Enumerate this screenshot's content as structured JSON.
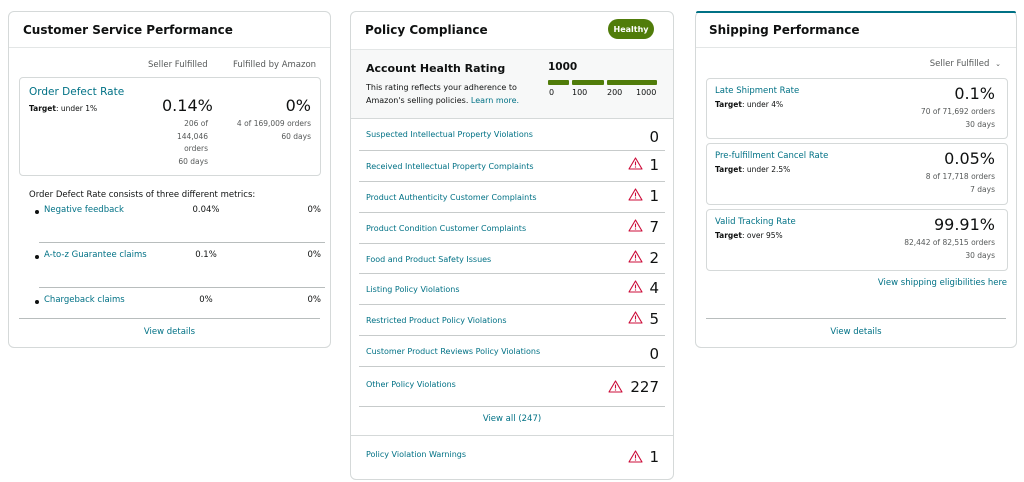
{
  "customer_service": {
    "title": "Customer Service Performance",
    "col_seller": "Seller Fulfilled",
    "col_amazon": "Fulfilled by Amazon",
    "odr": {
      "label": "Order Defect Rate",
      "target_label": "Target",
      "target_value": ": under 1%",
      "seller_pct": "0.14%",
      "seller_detail": [
        "206 of",
        "144,046",
        "orders",
        "60 days"
      ],
      "amazon_pct": "0%",
      "amazon_detail": [
        "4 of 169,009 orders",
        "60 days"
      ]
    },
    "consists_text": "Order Defect Rate consists of three different metrics:",
    "metrics": [
      {
        "name": "Negative feedback",
        "seller": "0.04%",
        "amazon": "0%"
      },
      {
        "name": "A-to-z Guarantee claims",
        "seller": "0.1%",
        "amazon": "0%"
      },
      {
        "name": "Chargeback claims",
        "seller": "0%",
        "amazon": "0%"
      }
    ],
    "view_details": "View details"
  },
  "policy_compliance": {
    "title": "Policy Compliance",
    "status_badge": "Healthy",
    "status_color": "#507c0a",
    "ahr": {
      "title": "Account Health Rating",
      "desc_text": "This rating reflects your adherence to Amazon's selling policies.",
      "desc_link": "Learn more.",
      "score": "1000",
      "ticks": [
        "0",
        "100",
        "200",
        "1000"
      ]
    },
    "violations": [
      {
        "name": "Suspected Intellectual Property Violations",
        "count": "0",
        "warning": false
      },
      {
        "name": "Received Intellectual Property Complaints",
        "count": "1",
        "warning": true
      },
      {
        "name": "Product Authenticity Customer Complaints",
        "count": "1",
        "warning": true
      },
      {
        "name": "Product Condition Customer Complaints",
        "count": "7",
        "warning": true
      },
      {
        "name": "Food and Product Safety Issues",
        "count": "2",
        "warning": true
      },
      {
        "name": "Listing Policy Violations",
        "count": "4",
        "warning": true
      },
      {
        "name": "Restricted Product Policy Violations",
        "count": "5",
        "warning": true
      },
      {
        "name": "Customer Product Reviews Policy Violations",
        "count": "0",
        "warning": false
      },
      {
        "name": "Other Policy Violations",
        "count": "227",
        "warning": true
      }
    ],
    "view_all": "View all (247)",
    "warnings_row": {
      "name": "Policy Violation Warnings",
      "count": "1",
      "warning": true
    }
  },
  "shipping": {
    "title": "Shipping Performance",
    "fulfillment_select": "Seller Fulfilled",
    "metrics": [
      {
        "name": "Late Shipment Rate",
        "target_label": "Target",
        "target_value": ": under 4%",
        "pct": "0.1%",
        "detail": [
          "70 of 71,692 orders",
          "30 days"
        ]
      },
      {
        "name": "Pre-fulfillment Cancel Rate",
        "target_label": "Target",
        "target_value": ": under 2.5%",
        "pct": "0.05%",
        "detail": [
          "8 of 17,718 orders",
          "7 days"
        ]
      },
      {
        "name": "Valid Tracking Rate",
        "target_label": "Target",
        "target_value": ": over 95%",
        "pct": "99.91%",
        "detail": [
          "82,442 of 82,515 orders",
          "30 days"
        ]
      }
    ],
    "eligibilities_link": "View shipping eligibilities here",
    "view_details": "View details"
  },
  "icons": {
    "warning": "warning-triangle-icon",
    "dropdown": "chevron-down-icon"
  },
  "colors": {
    "link": "#007185",
    "warning": "#cc0c39",
    "healthy": "#507c0a"
  }
}
